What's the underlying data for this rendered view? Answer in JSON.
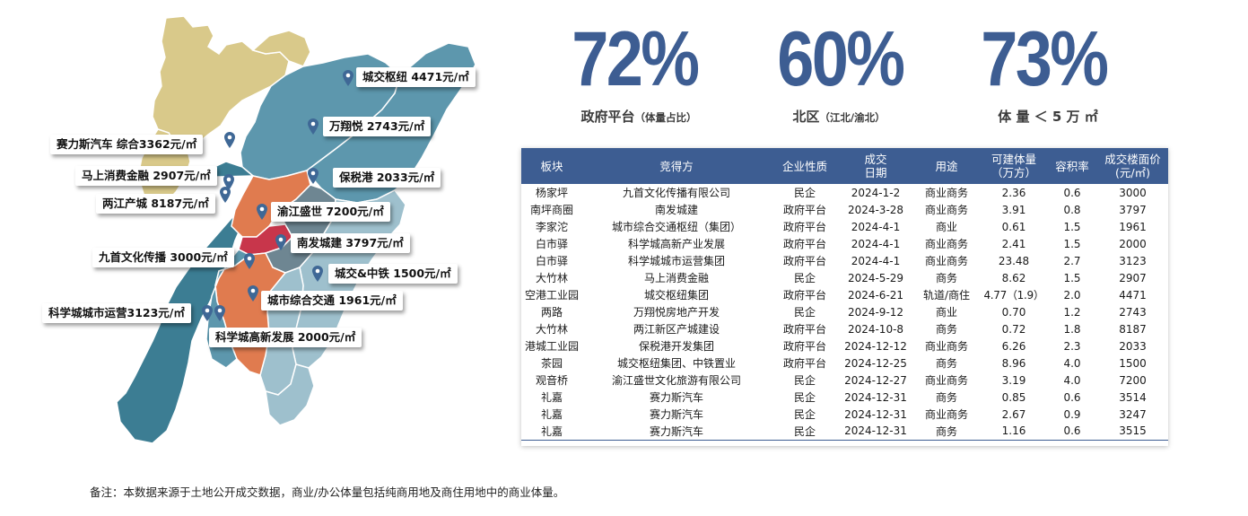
{
  "colors": {
    "primary": "#3d5d92",
    "map_khaki": "#d9c98a",
    "map_teal": "#5d97ad",
    "map_teal_dark": "#3c7d93",
    "map_light_blue": "#9ec0cd",
    "map_orange": "#e07b4f",
    "map_red": "#c8364b",
    "map_gray": "#6e8692",
    "pin": "#3f6896"
  },
  "map": {
    "callouts": [
      {
        "label": "城交枢纽  4471元/㎡"
      },
      {
        "label": "万翔悦  2743元/㎡"
      },
      {
        "label": "赛力斯汽车  综合3362元/㎡"
      },
      {
        "label": "保税港  2033元/㎡"
      },
      {
        "label": "马上消费金融  2907元/㎡"
      },
      {
        "label": "两江产城  8187元/㎡"
      },
      {
        "label": "渝江盛世  7200元/㎡"
      },
      {
        "label": "南发城建  3797元/㎡"
      },
      {
        "label": "九首文化传播  3000元/㎡"
      },
      {
        "label": "城交&中铁  1500元/㎡"
      },
      {
        "label": "城市综合交通  1961元/㎡"
      },
      {
        "label": "科学城城市运营3123元/㎡"
      },
      {
        "label": "科学城高新发展  2000元/㎡"
      }
    ]
  },
  "stats": [
    {
      "value": "72%",
      "label": "政府平台",
      "sub": "（体量占比）"
    },
    {
      "value": "60%",
      "label": "北区",
      "sub": "（江北/渝北）"
    },
    {
      "value": "73%",
      "label": "体 量 ＜ 5 万 ㎡",
      "sub": ""
    }
  ],
  "table": {
    "headers": [
      "板块",
      "竞得方",
      "企业性质",
      "成交\n日期",
      "用途",
      "可建体量\n（万方）",
      "容积率",
      "成交楼面价\n(元/㎡)"
    ],
    "rows": [
      [
        "杨家坪",
        "九首文化传播有限公司",
        "民企",
        "2024-1-2",
        "商业商务",
        "2.36",
        "0.6",
        "3000"
      ],
      [
        "南坪商圈",
        "南发城建",
        "政府平台",
        "2024-3-28",
        "商业商务",
        "3.91",
        "0.8",
        "3797"
      ],
      [
        "李家沱",
        "城市综合交通枢纽（集团）",
        "政府平台",
        "2024-4-1",
        "商业",
        "0.61",
        "1.5",
        "1961"
      ],
      [
        "白市驿",
        "科学城高新产业发展",
        "政府平台",
        "2024-4-1",
        "商业商务",
        "2.41",
        "1.5",
        "2000"
      ],
      [
        "白市驿",
        "科学城城市运营集团",
        "政府平台",
        "2024-4-1",
        "商业商务",
        "23.48",
        "2.7",
        "3123"
      ],
      [
        "大竹林",
        "马上消费金融",
        "民企",
        "2024-5-29",
        "商务",
        "8.62",
        "1.5",
        "2907"
      ],
      [
        "空港工业园",
        "城交枢纽集团",
        "政府平台",
        "2024-6-21",
        "轨道/商住",
        "4.77（1.9）",
        "2.0",
        "4471"
      ],
      [
        "两路",
        "万翔悦房地产开发",
        "民企",
        "2024-9-12",
        "商业",
        "0.70",
        "1.2",
        "2743"
      ],
      [
        "大竹林",
        "两江新区产城建设",
        "政府平台",
        "2024-10-8",
        "商务",
        "0.72",
        "1.8",
        "8187"
      ],
      [
        "港城工业园",
        "保税港开发集团",
        "政府平台",
        "2024-12-12",
        "商业商务",
        "6.26",
        "2.3",
        "2033"
      ],
      [
        "茶园",
        "城交枢纽集团、中铁置业",
        "政府平台",
        "2024-12-25",
        "商务",
        "8.96",
        "4.0",
        "1500"
      ],
      [
        "观音桥",
        "渝江盛世文化旅游有限公司",
        "民企",
        "2024-12-27",
        "商业商务",
        "3.19",
        "4.0",
        "7200"
      ],
      [
        "礼嘉",
        "赛力斯汽车",
        "民企",
        "2024-12-31",
        "商务",
        "0.85",
        "0.6",
        "3514"
      ],
      [
        "礼嘉",
        "赛力斯汽车",
        "民企",
        "2024-12-31",
        "商业商务",
        "2.67",
        "0.9",
        "3247"
      ],
      [
        "礼嘉",
        "赛力斯汽车",
        "民企",
        "2024-12-31",
        "商务",
        "1.16",
        "0.6",
        "3515"
      ]
    ]
  },
  "note": "备注：本数据来源于土地公开成交数据，商业/办公体量包括纯商用地及商住用地中的商业体量。"
}
